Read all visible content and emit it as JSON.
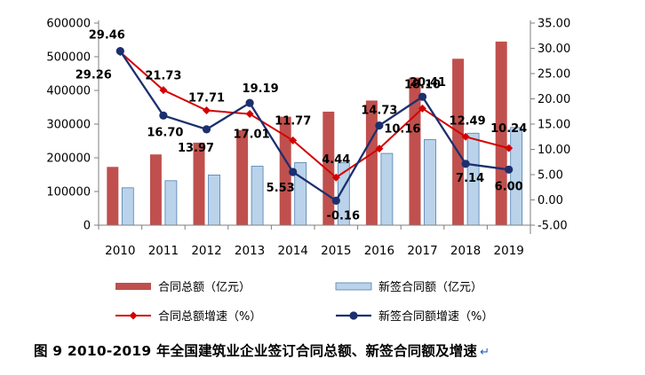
{
  "chart_data": {
    "type": "bar",
    "categories": [
      "2010",
      "2011",
      "2012",
      "2013",
      "2014",
      "2015",
      "2016",
      "2017",
      "2018",
      "2019"
    ],
    "series": [
      {
        "name": "合同总额（亿元）",
        "type": "bar",
        "axis": "left",
        "color": "#c0504d",
        "values": [
          173000,
          210000,
          245000,
          282000,
          322000,
          337000,
          370000,
          438000,
          494000,
          545000
        ]
      },
      {
        "name": "新签合同额（亿元）",
        "type": "bar",
        "axis": "left",
        "color": "#bad3ea",
        "values": [
          111000,
          132000,
          149000,
          175000,
          186000,
          185000,
          213000,
          254000,
          273000,
          290000
        ]
      },
      {
        "name": "合同总额增速（%）",
        "type": "line",
        "axis": "right",
        "color": "#d40000",
        "values": [
          29.26,
          21.73,
          17.71,
          17.01,
          11.77,
          4.44,
          10.16,
          18.1,
          12.49,
          10.24
        ]
      },
      {
        "name": "新签合同额增速（%）",
        "type": "line",
        "axis": "right",
        "color": "#1c2f6e",
        "values": [
          29.46,
          16.7,
          13.97,
          19.19,
          5.53,
          -0.16,
          14.73,
          20.41,
          7.14,
          6.0
        ]
      }
    ],
    "y_left": {
      "lim": [
        0,
        600000
      ],
      "ticks": [
        "0",
        "100000",
        "200000",
        "300000",
        "400000",
        "500000",
        "600000"
      ]
    },
    "y_right": {
      "lim": [
        -5,
        35
      ],
      "ticks": [
        "-5.00",
        "0.00",
        "5.00",
        "10.00",
        "15.00",
        "20.00",
        "25.00",
        "30.00",
        "35.00"
      ]
    },
    "labels_total_growth": [
      "29.26",
      "21.73",
      "17.71",
      "17.01",
      "11.77",
      "4.44",
      "10.16",
      "18.10",
      "12.49",
      "10.24"
    ],
    "labels_new_growth": [
      "29.46",
      "16.70",
      "13.97",
      "19.19",
      "5.53",
      "-0.16",
      "14.73",
      "20.41",
      "7.14",
      "6.00"
    ],
    "grid": false,
    "legend_position": "bottom"
  },
  "caption": "图 9 2010-2019 年全国建筑业企业签订合同总额、新签合同额及增速",
  "caption_mark": "↵"
}
